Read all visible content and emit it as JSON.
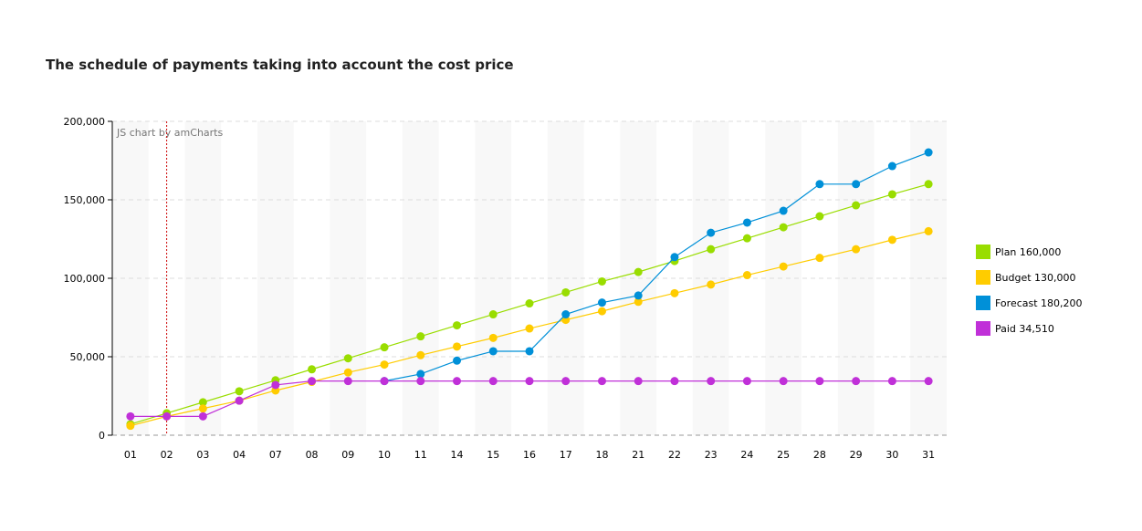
{
  "chart_data": {
    "type": "line",
    "title": "The schedule of payments taking into account the cost price",
    "watermark": "JS chart by amCharts",
    "categories": [
      "01",
      "02",
      "03",
      "04",
      "07",
      "08",
      "09",
      "10",
      "11",
      "14",
      "15",
      "16",
      "17",
      "18",
      "21",
      "22",
      "23",
      "24",
      "25",
      "28",
      "29",
      "30",
      "31"
    ],
    "ylim": [
      0,
      200000
    ],
    "yticks": [
      "0",
      "50,000",
      "100,000",
      "150,000",
      "200,000"
    ],
    "ytick_values": [
      0,
      50000,
      100000,
      150000,
      200000
    ],
    "grid": true,
    "legend_position": "right",
    "cursor_category": "02",
    "series": [
      {
        "name": "Plan",
        "total": "160,000",
        "color": "#99dd00",
        "values": [
          7000,
          14000,
          21000,
          28000,
          35000,
          42000,
          49000,
          56000,
          63000,
          70000,
          77000,
          84000,
          91000,
          98000,
          104000,
          111000,
          118500,
          125500,
          132500,
          139500,
          146500,
          153500,
          160000
        ]
      },
      {
        "name": "Budget",
        "total": "130,000",
        "color": "#ffcc00",
        "values": [
          6000,
          12000,
          17000,
          22000,
          28500,
          34000,
          40000,
          45000,
          51000,
          56500,
          62000,
          68000,
          73500,
          79000,
          85000,
          90500,
          96000,
          102000,
          107500,
          113000,
          118500,
          124500,
          130000
        ]
      },
      {
        "name": "Forecast",
        "total": "180,200",
        "color": "#0090d8",
        "values": [
          null,
          null,
          null,
          null,
          null,
          null,
          null,
          34510,
          39000,
          47500,
          53500,
          53500,
          77000,
          84500,
          89000,
          113500,
          129000,
          135500,
          143000,
          160000,
          160000,
          171500,
          180200
        ]
      },
      {
        "name": "Paid",
        "total": "34,510",
        "color": "#c030d8",
        "values": [
          12000,
          12000,
          12000,
          22000,
          32000,
          34510,
          34510,
          34510,
          34510,
          34510,
          34510,
          34510,
          34510,
          34510,
          34510,
          34510,
          34510,
          34510,
          34510,
          34510,
          34510,
          34510,
          34510
        ]
      }
    ]
  }
}
